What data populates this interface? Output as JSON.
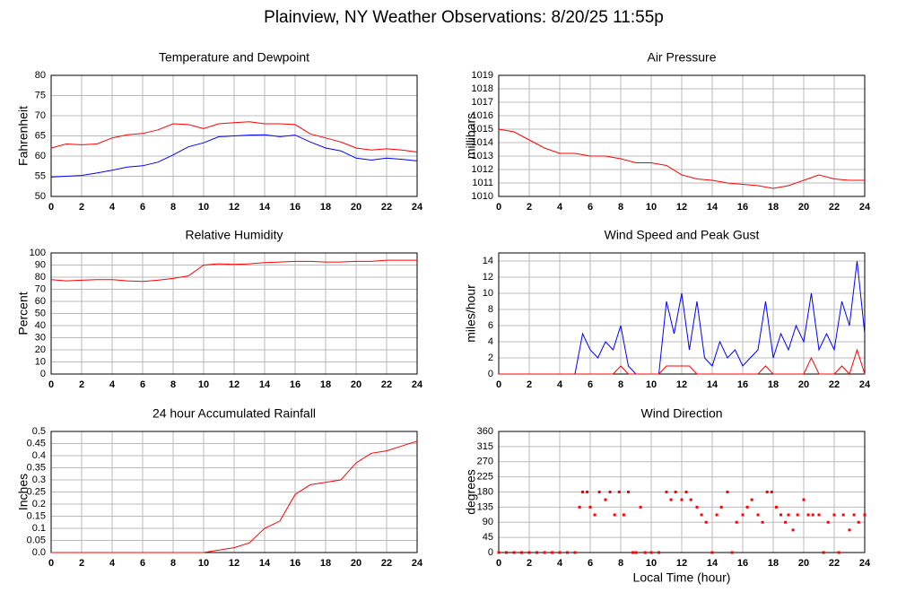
{
  "title": "Plainview, NY Weather Observations: 8/20/25 11:55p",
  "chart_data": [
    {
      "type": "line",
      "title": "Temperature and Dewpoint",
      "ylabel": "Fahrenheit",
      "x": [
        0,
        1,
        2,
        3,
        4,
        5,
        6,
        7,
        8,
        9,
        10,
        11,
        12,
        13,
        14,
        15,
        16,
        17,
        18,
        19,
        20,
        21,
        22,
        23,
        24
      ],
      "series": [
        {
          "color": "#ff0000",
          "values": [
            62,
            63,
            62.8,
            63,
            64.5,
            65.3,
            65.6,
            66.5,
            68,
            67.8,
            66.8,
            68,
            68.3,
            68.5,
            68,
            68,
            67.8,
            65.5,
            64.5,
            63.5,
            62,
            61.5,
            61.8,
            61.5,
            61
          ]
        },
        {
          "color": "#0000ff",
          "values": [
            54.8,
            55,
            55.2,
            55.8,
            56.5,
            57.3,
            57.6,
            58.5,
            60.3,
            62.3,
            63.3,
            64.8,
            65,
            65.2,
            65.3,
            64.8,
            65.2,
            63.5,
            62,
            61.3,
            59.5,
            59,
            59.5,
            59.2,
            58.8
          ]
        }
      ],
      "xlim": [
        0,
        24
      ],
      "xticks": [
        0,
        2,
        4,
        6,
        8,
        10,
        12,
        14,
        16,
        18,
        20,
        22,
        24
      ],
      "ylim": [
        50,
        80
      ],
      "yticks": [
        50,
        55,
        60,
        65,
        70,
        75,
        80
      ],
      "grid": true
    },
    {
      "type": "line",
      "title": "Air Pressure",
      "ylabel": "millibars",
      "x": [
        0,
        1,
        2,
        3,
        4,
        5,
        6,
        7,
        8,
        9,
        10,
        11,
        12,
        13,
        14,
        15,
        16,
        17,
        18,
        19,
        20,
        21,
        22,
        23,
        24
      ],
      "series": [
        {
          "color": "#ff0000",
          "values": [
            1015,
            1014.8,
            1014.2,
            1013.6,
            1013.2,
            1013.2,
            1013,
            1013,
            1012.8,
            1012.5,
            1012.5,
            1012.3,
            1011.6,
            1011.3,
            1011.2,
            1011,
            1010.9,
            1010.8,
            1010.6,
            1010.8,
            1011.2,
            1011.6,
            1011.3,
            1011.2,
            1011.2
          ]
        }
      ],
      "xlim": [
        0,
        24
      ],
      "xticks": [
        0,
        2,
        4,
        6,
        8,
        10,
        12,
        14,
        16,
        18,
        20,
        22,
        24
      ],
      "ylim": [
        1010,
        1019
      ],
      "yticks": [
        1010,
        1011,
        1012,
        1013,
        1014,
        1015,
        1016,
        1017,
        1018,
        1019
      ],
      "grid": true
    },
    {
      "type": "line",
      "title": "Relative Humidity",
      "ylabel": "Percent",
      "x": [
        0,
        1,
        2,
        3,
        4,
        5,
        6,
        7,
        8,
        9,
        10,
        11,
        12,
        13,
        14,
        15,
        16,
        17,
        18,
        19,
        20,
        21,
        22,
        23,
        24
      ],
      "series": [
        {
          "color": "#ff0000",
          "values": [
            78,
            77,
            77.5,
            78,
            78,
            77,
            76.5,
            77.5,
            79,
            81,
            90,
            91,
            90.5,
            91,
            92,
            92.5,
            93,
            93,
            92.5,
            92.5,
            93,
            93,
            94,
            94,
            94
          ]
        }
      ],
      "xlim": [
        0,
        24
      ],
      "xticks": [
        0,
        2,
        4,
        6,
        8,
        10,
        12,
        14,
        16,
        18,
        20,
        22,
        24
      ],
      "ylim": [
        0,
        100
      ],
      "yticks": [
        0,
        10,
        20,
        30,
        40,
        50,
        60,
        70,
        80,
        90,
        100
      ],
      "grid": true
    },
    {
      "type": "line",
      "title": "Wind Speed and Peak Gust",
      "ylabel": "miles/hour",
      "x": [
        0,
        0.5,
        1,
        1.5,
        2,
        2.5,
        3,
        3.5,
        4,
        4.5,
        5,
        5.5,
        6,
        6.5,
        7,
        7.5,
        8,
        8.5,
        9,
        9.5,
        10,
        10.5,
        11,
        11.5,
        12,
        12.5,
        13,
        13.5,
        14,
        14.5,
        15,
        15.5,
        16,
        16.5,
        17,
        17.5,
        18,
        18.5,
        19,
        19.5,
        20,
        20.5,
        21,
        21.5,
        22,
        22.5,
        23,
        23.5,
        24
      ],
      "series": [
        {
          "color": "#0000ff",
          "values": [
            0,
            0,
            0,
            0,
            0,
            0,
            0,
            0,
            0,
            0,
            0,
            5,
            3,
            2,
            4,
            3,
            6,
            1,
            0,
            0,
            0,
            0,
            9,
            5,
            10,
            3,
            9,
            2,
            1,
            4,
            2,
            3,
            1,
            2,
            3,
            9,
            2,
            5,
            3,
            6,
            4,
            10,
            3,
            5,
            3,
            9,
            6,
            14,
            5
          ]
        },
        {
          "color": "#ff0000",
          "values": [
            0,
            0,
            0,
            0,
            0,
            0,
            0,
            0,
            0,
            0,
            0,
            0,
            0,
            0,
            0,
            0,
            1,
            0,
            0,
            0,
            0,
            0,
            1,
            1,
            1,
            1,
            0,
            0,
            0,
            0,
            0,
            0,
            0,
            0,
            0,
            1,
            0,
            0,
            0,
            0,
            0,
            2,
            0,
            0,
            0,
            1,
            0,
            3,
            0
          ]
        }
      ],
      "xlim": [
        0,
        24
      ],
      "xticks": [
        0,
        2,
        4,
        6,
        8,
        10,
        12,
        14,
        16,
        18,
        20,
        22,
        24
      ],
      "ylim": [
        0,
        15
      ],
      "yticks": [
        0,
        2,
        4,
        6,
        8,
        10,
        12,
        14
      ],
      "grid": true
    },
    {
      "type": "line",
      "title": "24 hour Accumulated Rainfall",
      "ylabel": "Inches",
      "x": [
        0,
        1,
        2,
        3,
        4,
        5,
        6,
        7,
        8,
        9,
        10,
        11,
        12,
        13,
        14,
        15,
        16,
        17,
        18,
        19,
        20,
        21,
        22,
        23,
        24
      ],
      "series": [
        {
          "color": "#ff0000",
          "values": [
            0,
            0,
            0,
            0,
            0,
            0,
            0,
            0,
            0,
            0,
            0,
            0.01,
            0.02,
            0.04,
            0.1,
            0.13,
            0.24,
            0.28,
            0.29,
            0.3,
            0.37,
            0.41,
            0.42,
            0.44,
            0.46
          ]
        }
      ],
      "xlim": [
        0,
        24
      ],
      "xticks": [
        0,
        2,
        4,
        6,
        8,
        10,
        12,
        14,
        16,
        18,
        20,
        22,
        24
      ],
      "ylim": [
        0,
        0.5
      ],
      "yticks": [
        {
          "value": 0,
          "label": "0.0"
        },
        0.05,
        0.1,
        0.15,
        0.2,
        0.25,
        0.3,
        0.35,
        0.4,
        0.45,
        0.5
      ],
      "grid": true
    },
    {
      "type": "scatter",
      "title": "Wind Direction",
      "ylabel": "degrees",
      "xlabel": "Local Time (hour)",
      "color": "#ff0000",
      "x": [
        0,
        0.5,
        1,
        1.5,
        2,
        2.5,
        3,
        3.5,
        4,
        4.5,
        5,
        5.3,
        5.5,
        5.8,
        6,
        6.3,
        6.6,
        7,
        7.3,
        7.6,
        7.9,
        8.2,
        8.5,
        8.8,
        9,
        9.3,
        9.6,
        10,
        10.5,
        11,
        11.3,
        11.6,
        12,
        12.3,
        12.6,
        13,
        13.3,
        13.6,
        14,
        14.3,
        14.6,
        15,
        15.3,
        15.6,
        16,
        16.3,
        16.6,
        17,
        17.3,
        17.6,
        17.9,
        18.2,
        18.5,
        18.8,
        19,
        19.3,
        19.6,
        20,
        20.3,
        20.6,
        21,
        21.3,
        21.6,
        22,
        22.3,
        22.6,
        23,
        23.3,
        23.6,
        24
      ],
      "values": [
        0,
        0,
        0,
        0,
        0,
        0,
        0,
        0,
        0,
        0,
        0,
        135,
        180,
        180,
        135,
        112,
        180,
        157,
        180,
        112,
        180,
        112,
        180,
        0,
        0,
        135,
        0,
        0,
        0,
        180,
        157,
        180,
        157,
        180,
        157,
        135,
        112,
        90,
        0,
        112,
        135,
        180,
        0,
        90,
        112,
        135,
        157,
        112,
        90,
        180,
        180,
        135,
        112,
        90,
        112,
        67,
        112,
        157,
        112,
        112,
        112,
        0,
        90,
        112,
        0,
        112,
        67,
        112,
        90,
        112
      ],
      "xlim": [
        0,
        24
      ],
      "xticks": [
        0,
        2,
        4,
        6,
        8,
        10,
        12,
        14,
        16,
        18,
        20,
        22,
        24
      ],
      "ylim": [
        0,
        360
      ],
      "yticks": [
        0,
        45,
        90,
        135,
        180,
        225,
        270,
        315,
        360
      ],
      "grid": true
    }
  ]
}
